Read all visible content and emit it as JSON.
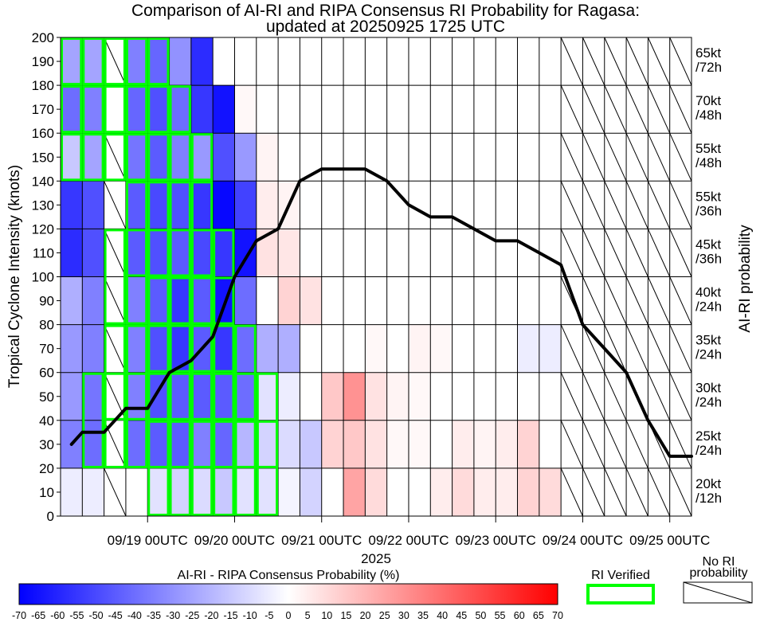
{
  "chart_data": {
    "type": "heatmap",
    "title": "Comparison of AI-RI and RIPA Consensus RI Probability for Ragasa:",
    "subtitle": "updated at 20250925 1725 UTC",
    "ylabel": "Tropical Cyclone Intensity (knots)",
    "right_label": "AI-RI probability",
    "xlabel": "2025",
    "ylim": [
      0,
      200
    ],
    "yticks": [
      "0",
      "10",
      "20",
      "30",
      "40",
      "50",
      "60",
      "70",
      "80",
      "90",
      "100",
      "110",
      "120",
      "130",
      "140",
      "150",
      "160",
      "170",
      "180",
      "190",
      "200"
    ],
    "xlim": [
      -2,
      27
    ],
    "xticks": [
      {
        "t": 2,
        "label": "09/19 00UTC"
      },
      {
        "t": 6,
        "label": "09/20 00UTC"
      },
      {
        "t": 10,
        "label": "09/21 00UTC"
      },
      {
        "t": 14,
        "label": "09/22 00UTC"
      },
      {
        "t": 18,
        "label": "09/23 00UTC"
      },
      {
        "t": 22,
        "label": "09/24 00UTC"
      },
      {
        "t": 26,
        "label": "09/25 00UTC"
      }
    ],
    "right_rows": [
      {
        "label": "65kt",
        "sub": "/72h"
      },
      {
        "label": "70kt",
        "sub": "/48h"
      },
      {
        "label": "55kt",
        "sub": "/48h"
      },
      {
        "label": "55kt",
        "sub": "/36h"
      },
      {
        "label": "45kt",
        "sub": "/36h"
      },
      {
        "label": "40kt",
        "sub": "/24h"
      },
      {
        "label": "35kt",
        "sub": "/24h"
      },
      {
        "label": "30kt",
        "sub": "/24h"
      },
      {
        "label": "25kt",
        "sub": "/24h"
      },
      {
        "label": "20kt",
        "sub": "/12h"
      }
    ],
    "rows_note": "rows listed top (180-200 kt band) to bottom (0-20 kt band); each row has one value per 6-hourly column",
    "no_ri_columns": [
      2,
      23,
      24,
      25,
      26,
      27,
      28
    ],
    "cells": [
      [
        -25,
        -25,
        null,
        -35,
        -42,
        -30,
        -58,
        0,
        0,
        0,
        0,
        0,
        0,
        0,
        0,
        0,
        0,
        0,
        0,
        0,
        0,
        0,
        0,
        null,
        null,
        null,
        null,
        null,
        null
      ],
      [
        -40,
        -35,
        0,
        -42,
        -48,
        -40,
        -55,
        -65,
        2,
        0,
        0,
        0,
        0,
        0,
        0,
        0,
        0,
        0,
        0,
        0,
        0,
        0,
        0,
        null,
        null,
        null,
        null,
        null,
        null
      ],
      [
        -15,
        -25,
        null,
        -38,
        -45,
        -35,
        -28,
        -48,
        -28,
        3,
        0,
        0,
        0,
        0,
        0,
        0,
        0,
        0,
        0,
        0,
        0,
        0,
        0,
        null,
        null,
        null,
        null,
        null,
        null
      ],
      [
        -55,
        -48,
        null,
        -45,
        -50,
        -48,
        -55,
        -68,
        -52,
        5,
        3,
        0,
        0,
        0,
        0,
        0,
        0,
        0,
        0,
        0,
        0,
        0,
        0,
        null,
        null,
        null,
        null,
        null,
        null
      ],
      [
        -58,
        -48,
        null,
        -45,
        -48,
        -45,
        -50,
        -55,
        -65,
        8,
        7,
        0,
        0,
        0,
        0,
        0,
        0,
        0,
        0,
        0,
        0,
        0,
        0,
        null,
        null,
        null,
        null,
        null,
        null
      ],
      [
        -22,
        -35,
        null,
        -35,
        -45,
        -55,
        -45,
        -65,
        -40,
        0,
        12,
        8,
        0,
        0,
        0,
        0,
        0,
        0,
        0,
        0,
        0,
        0,
        0,
        null,
        null,
        null,
        null,
        null,
        null
      ],
      [
        -28,
        -35,
        null,
        -35,
        -48,
        -55,
        -45,
        -55,
        -40,
        -22,
        -22,
        0,
        0,
        0,
        2,
        0,
        3,
        2,
        0,
        0,
        0,
        -5,
        -5,
        null,
        null,
        null,
        null,
        null,
        null
      ],
      [
        -28,
        -38,
        null,
        -35,
        -48,
        -45,
        -45,
        -45,
        -40,
        -8,
        -5,
        0,
        15,
        30,
        8,
        3,
        2,
        0,
        0,
        0,
        0,
        0,
        0,
        null,
        null,
        null,
        null,
        null,
        null
      ],
      [
        -35,
        -40,
        null,
        -40,
        -45,
        -45,
        -35,
        -42,
        -20,
        -12,
        -10,
        -15,
        12,
        15,
        8,
        2,
        2,
        0,
        5,
        3,
        5,
        12,
        0,
        null,
        null,
        null,
        null,
        null,
        null
      ],
      [
        -5,
        -5,
        null,
        0,
        -8,
        -12,
        -10,
        -15,
        -8,
        -8,
        -3,
        -12,
        0,
        25,
        10,
        0,
        0,
        5,
        10,
        5,
        5,
        12,
        10,
        null,
        null,
        null,
        null,
        null,
        null
      ]
    ],
    "verified_boxes": [
      {
        "i0": 0,
        "i1": 5,
        "v0": 180,
        "v1": 200
      },
      {
        "i0": 0,
        "i1": 6,
        "v0": 160,
        "v1": 180
      },
      {
        "i0": 0,
        "i1": 7,
        "v0": 140,
        "v1": 160
      },
      {
        "i0": 3,
        "i1": 7,
        "v0": 100,
        "v1": 140
      },
      {
        "i0": 2,
        "i1": 8,
        "v0": 80,
        "v1": 120
      },
      {
        "i0": 4,
        "i1": 8,
        "v0": 60,
        "v1": 100
      },
      {
        "i0": 2,
        "i1": 9,
        "v0": 40,
        "v1": 80
      },
      {
        "i0": 1,
        "i1": 10,
        "v0": 20,
        "v1": 60
      },
      {
        "i0": 4,
        "i1": 10,
        "v0": 0,
        "v1": 40
      }
    ],
    "intensity_track": {
      "t": [
        -1.5,
        -1,
        0,
        1,
        2,
        3,
        4,
        5,
        6,
        7,
        8,
        9,
        10,
        11,
        12,
        13,
        14,
        15,
        16,
        17,
        18,
        19,
        20,
        21,
        22,
        23,
        24,
        25,
        26,
        27
      ],
      "kt": [
        30,
        35,
        35,
        45,
        45,
        60,
        65,
        75,
        100,
        115,
        120,
        140,
        145,
        145,
        145,
        140,
        130,
        125,
        125,
        120,
        115,
        115,
        110,
        105,
        80,
        70,
        60,
        40,
        25,
        25
      ]
    },
    "colorbar": {
      "label": "AI-RI - RIPA Consensus Probability (%)",
      "ticks": [
        "-70",
        "-65",
        "-60",
        "-55",
        "-50",
        "-45",
        "-40",
        "-35",
        "-30",
        "-25",
        "-20",
        "-15",
        "-10",
        "-5",
        "0",
        "5",
        "10",
        "15",
        "20",
        "25",
        "30",
        "35",
        "40",
        "45",
        "50",
        "55",
        "60",
        "65",
        "70"
      ],
      "range": [
        -70,
        70
      ],
      "low_color": "#0000ff",
      "mid_color": "#ffffff",
      "high_color": "#ff0000"
    },
    "legend_verified": "RI Verified",
    "legend_no_ri": [
      "No RI",
      "probability"
    ],
    "verified_color": "#00ff00",
    "track_color": "#000000"
  }
}
